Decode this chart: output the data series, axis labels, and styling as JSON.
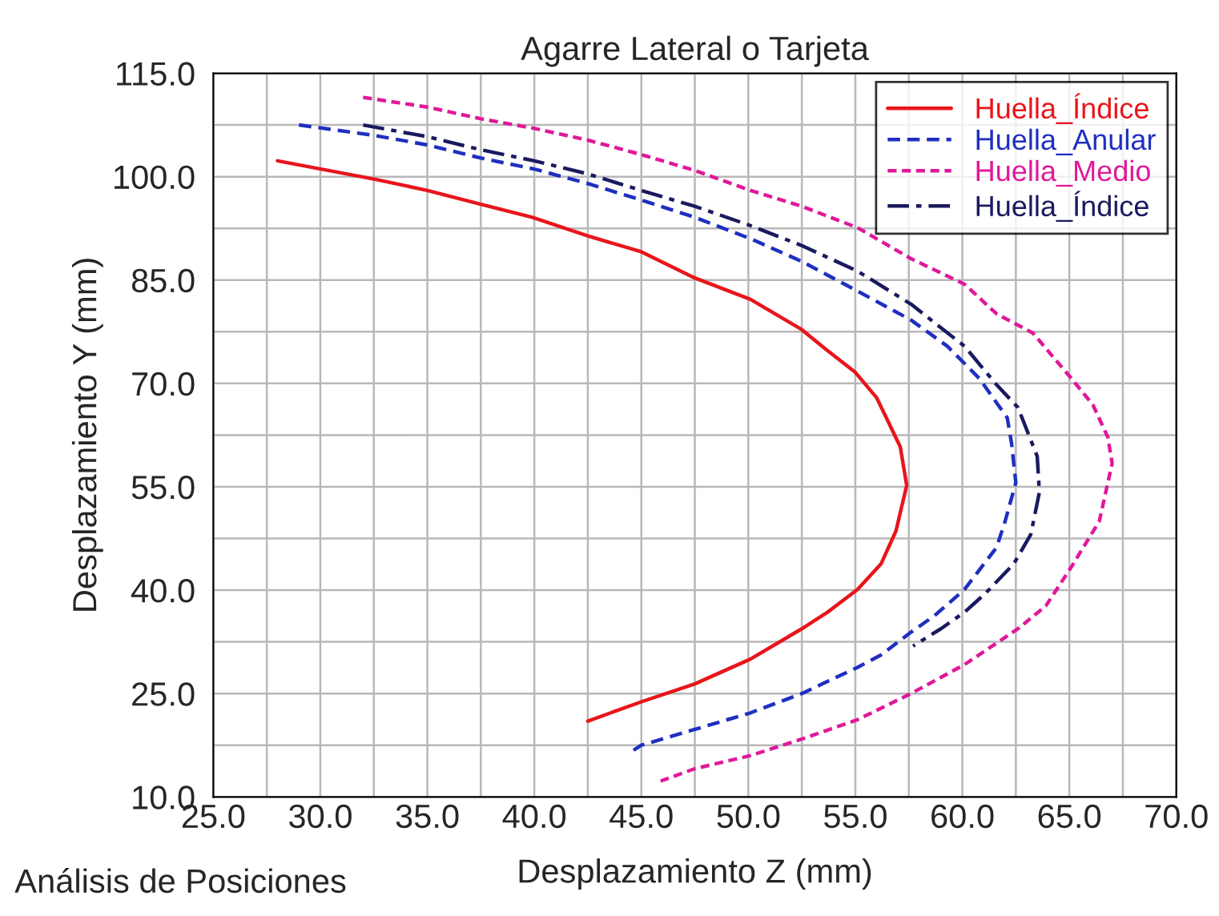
{
  "chart_data": {
    "type": "line",
    "title": "Agarre Lateral o Tarjeta",
    "xlabel": "Desplazamiento Z (mm)",
    "ylabel": "Desplazamiento Y (mm)",
    "annotations": [
      "Análisis de Posiciones"
    ],
    "xlim": [
      25,
      70
    ],
    "ylim": [
      10,
      115
    ],
    "xticks": [
      {
        "value": 25,
        "label": "25.0"
      },
      {
        "value": 27.5,
        "label": null
      },
      {
        "value": 30,
        "label": "30.0"
      },
      {
        "value": 32.5,
        "label": null
      },
      {
        "value": 35,
        "label": "35.0"
      },
      {
        "value": 37.5,
        "label": null
      },
      {
        "value": 40,
        "label": "40.0"
      },
      {
        "value": 42.5,
        "label": null
      },
      {
        "value": 45,
        "label": "45.0"
      },
      {
        "value": 47.5,
        "label": null
      },
      {
        "value": 50,
        "label": "50.0"
      },
      {
        "value": 52.5,
        "label": null
      },
      {
        "value": 55,
        "label": "55.0"
      },
      {
        "value": 57.5,
        "label": null
      },
      {
        "value": 60,
        "label": "60.0"
      },
      {
        "value": 62.5,
        "label": null
      },
      {
        "value": 65,
        "label": "65.0"
      },
      {
        "value": 67.5,
        "label": null
      },
      {
        "value": 70,
        "label": "70.0"
      }
    ],
    "yticks": [
      {
        "value": 10,
        "label": "10.0"
      },
      {
        "value": 17.5,
        "label": null
      },
      {
        "value": 25,
        "label": "25.0"
      },
      {
        "value": 32.5,
        "label": null
      },
      {
        "value": 40,
        "label": "40.0"
      },
      {
        "value": 47.5,
        "label": null
      },
      {
        "value": 55,
        "label": "55.0"
      },
      {
        "value": 62.5,
        "label": null
      },
      {
        "value": 70,
        "label": "70.0"
      },
      {
        "value": 77.5,
        "label": null
      },
      {
        "value": 85,
        "label": "85.0"
      },
      {
        "value": 92.5,
        "label": null
      },
      {
        "value": 100,
        "label": "100.0"
      },
      {
        "value": 107.5,
        "label": null
      },
      {
        "value": 115,
        "label": "115.0"
      }
    ],
    "grid": true,
    "legend": "top right",
    "marker": "none",
    "series": [
      {
        "name": "Huella_Índice",
        "color": "#e8151b",
        "line_style": "solid",
        "x": [
          28.0,
          32.6,
          35.0,
          37.5,
          39.9,
          42.5,
          45.0,
          47.5,
          50.1,
          52.5,
          53.6,
          55.0,
          56.0,
          57.1,
          57.4,
          56.9,
          56.2,
          55.1,
          53.7,
          52.5,
          50.1,
          47.5,
          45.0,
          42.5
        ],
        "values": [
          102.3,
          99.6,
          98.0,
          96.0,
          94.1,
          91.4,
          89.1,
          85.3,
          82.2,
          77.8,
          75.0,
          71.6,
          67.9,
          60.8,
          55.2,
          48.6,
          43.8,
          40.1,
          36.8,
          34.4,
          30.0,
          26.4,
          23.8,
          21.0
        ]
      },
      {
        "name": "Huella_Anular",
        "color": "#1f2fc0",
        "line_style": "dashed",
        "x": [
          29.0,
          32.5,
          35.0,
          37.5,
          40.0,
          42.5,
          45.0,
          47.5,
          50.1,
          52.5,
          55.1,
          57.6,
          59.3,
          60.8,
          62.1,
          62.3,
          62.5,
          62.0,
          61.6,
          60.1,
          58.7,
          57.6,
          56.2,
          55.1,
          52.5,
          50.1,
          47.5,
          45.0,
          44.5
        ],
        "values": [
          107.5,
          106.0,
          104.6,
          102.7,
          101.1,
          99.0,
          96.6,
          94.1,
          91.0,
          87.7,
          83.4,
          79.2,
          75.4,
          70.7,
          65.0,
          61.3,
          55.6,
          50.0,
          46.2,
          40.1,
          36.3,
          33.9,
          30.6,
          28.8,
          25.0,
          22.2,
          19.8,
          17.5,
          16.5
        ]
      },
      {
        "name": "Huella_Medio",
        "color": "#e0189a",
        "line_style": "dotted",
        "x": [
          32.0,
          35.0,
          37.5,
          40.0,
          42.5,
          45.0,
          47.5,
          50.1,
          52.5,
          55.1,
          57.6,
          60.1,
          61.6,
          63.3,
          65.1,
          66.1,
          66.8,
          67.0,
          66.4,
          65.1,
          63.9,
          62.6,
          60.1,
          57.6,
          55.1,
          52.5,
          50.1,
          47.5,
          45.9
        ],
        "values": [
          111.5,
          110.1,
          108.4,
          107.0,
          105.3,
          103.2,
          100.9,
          98.0,
          95.7,
          92.6,
          88.1,
          84.4,
          80.1,
          77.3,
          70.7,
          66.9,
          62.2,
          58.4,
          50.0,
          43.4,
          37.7,
          34.4,
          29.2,
          25.0,
          21.2,
          18.4,
          16.0,
          14.1,
          12.3
        ]
      },
      {
        "name": "Huella_Índice",
        "color": "#1a1a60",
        "line_style": "dashdot",
        "x": [
          32.0,
          35.0,
          37.5,
          40.0,
          42.5,
          45.0,
          47.5,
          50.1,
          52.5,
          55.1,
          57.6,
          60.1,
          61.6,
          62.6,
          63.5,
          63.6,
          63.2,
          62.4,
          61.1,
          60.1,
          59.0,
          57.7
        ],
        "values": [
          107.5,
          105.8,
          103.9,
          102.3,
          100.4,
          98.0,
          95.7,
          92.9,
          90.0,
          86.3,
          81.5,
          75.4,
          69.8,
          66.5,
          59.4,
          54.2,
          48.1,
          43.8,
          39.6,
          36.8,
          34.4,
          31.9
        ]
      }
    ]
  }
}
